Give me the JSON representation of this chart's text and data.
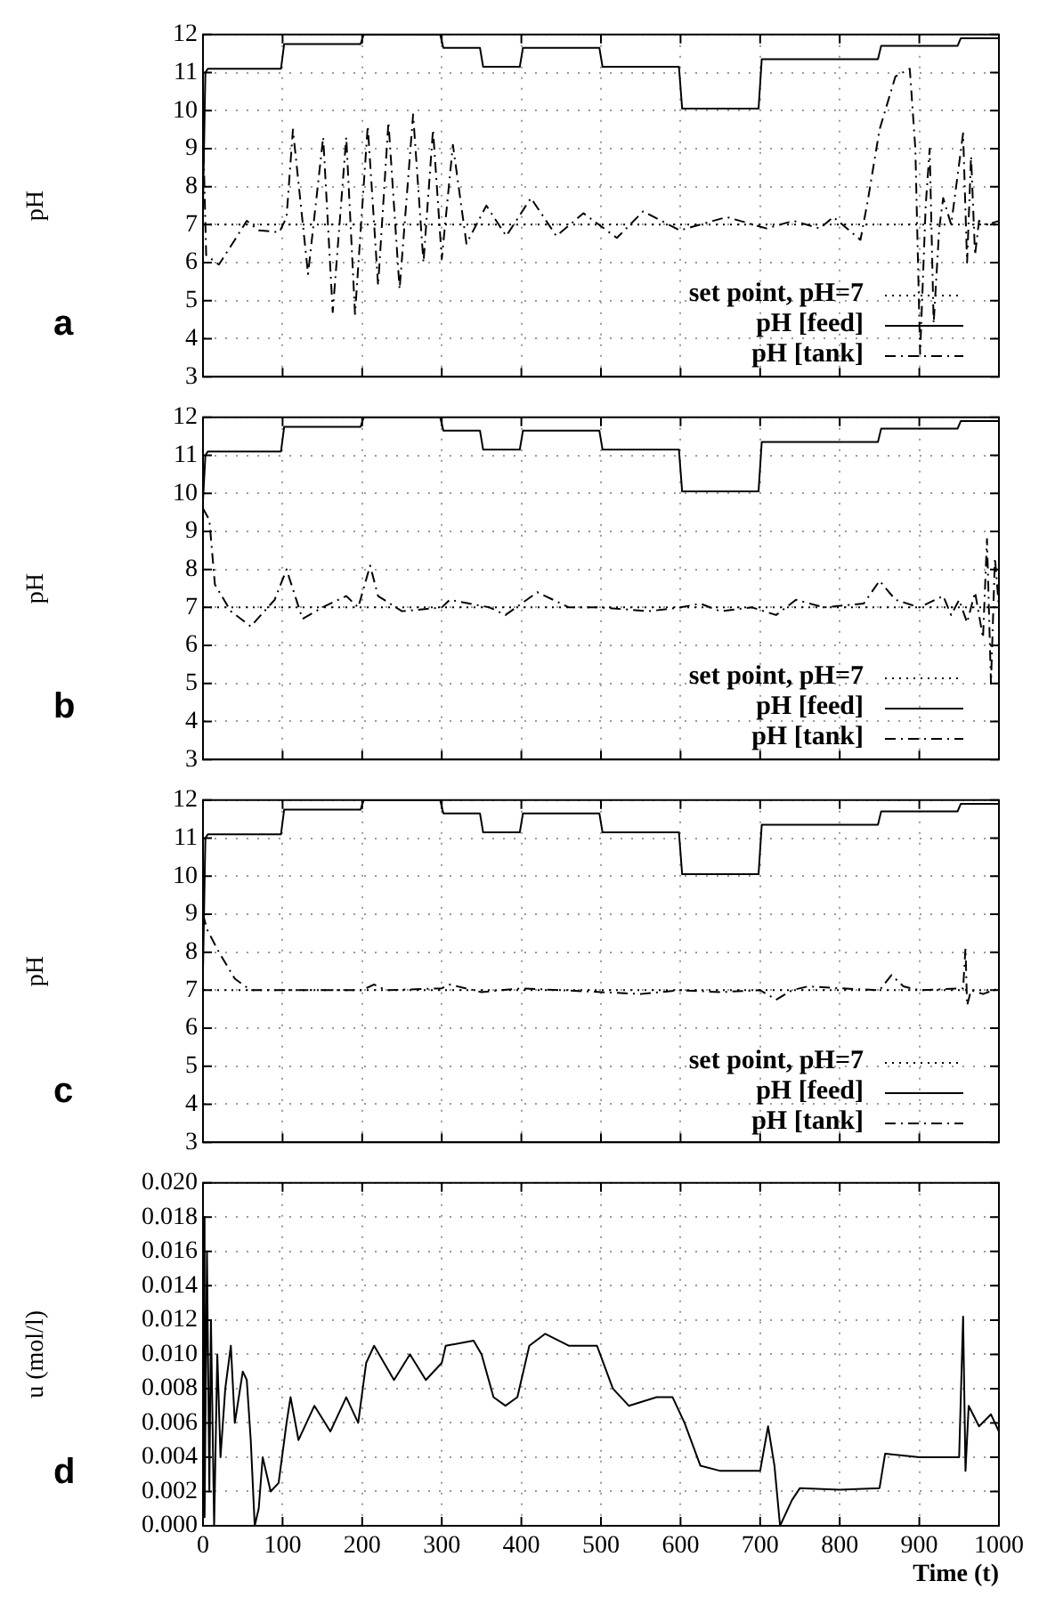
{
  "chart_data": [
    {
      "type": "line",
      "annotations": [
        "a"
      ],
      "ylabel": "pH",
      "xlim": [
        0,
        1000
      ],
      "xticks": [
        0,
        100,
        200,
        300,
        400,
        500,
        600,
        700,
        800,
        900,
        1000
      ],
      "ylim": [
        3,
        12
      ],
      "yticks": [
        3,
        4,
        5,
        6,
        7,
        8,
        9,
        10,
        11,
        12
      ],
      "tick_labels": "y",
      "grid": true,
      "legend": "bottom right",
      "marker": "none",
      "series": [
        {
          "name": "set point, pH=7",
          "color": "#000000",
          "line_style": "dotted",
          "x": [
            0,
            1000
          ],
          "values": [
            7,
            7
          ]
        },
        {
          "name": "pH [feed]",
          "color": "#000000",
          "line_style": "solid",
          "x": [
            0,
            3,
            6,
            98,
            102,
            198,
            202,
            298,
            302,
            348,
            352,
            398,
            402,
            498,
            502,
            598,
            602,
            698,
            702,
            848,
            852,
            948,
            952,
            1000
          ],
          "values": [
            7.5,
            11.0,
            11.1,
            11.1,
            11.75,
            11.75,
            12.0,
            12.0,
            11.65,
            11.65,
            11.15,
            11.15,
            11.65,
            11.65,
            11.15,
            11.15,
            10.05,
            10.05,
            11.35,
            11.35,
            11.7,
            11.7,
            11.9,
            11.9
          ]
        },
        {
          "name": "pH [tank]",
          "color": "#000000",
          "line_style": "dashed",
          "x": [
            0,
            4,
            20,
            40,
            55,
            70,
            96,
            105,
            113,
            132,
            151,
            163,
            180,
            191,
            207,
            220,
            233,
            247,
            264,
            277,
            289,
            300,
            314,
            331,
            356,
            381,
            412,
            444,
            478,
            520,
            553,
            599,
            658,
            708,
            742,
            775,
            792,
            826,
            835,
            850,
            870,
            888,
            895,
            901,
            908,
            913,
            918,
            925,
            930,
            940,
            955,
            960,
            965,
            970,
            975,
            985,
            1000
          ],
          "values": [
            9.5,
            6.2,
            5.95,
            6.6,
            7.1,
            6.85,
            6.8,
            7.2,
            9.5,
            5.7,
            9.3,
            4.7,
            9.3,
            4.65,
            9.6,
            5.4,
            9.7,
            5.3,
            9.9,
            6.0,
            9.5,
            6.1,
            9.1,
            6.5,
            7.5,
            6.7,
            7.7,
            6.7,
            7.3,
            6.65,
            7.35,
            6.85,
            7.2,
            6.9,
            7.1,
            6.9,
            7.2,
            6.6,
            7.6,
            9.5,
            10.9,
            11.1,
            9.0,
            3.6,
            7.5,
            9.0,
            4.4,
            6.9,
            7.7,
            7.0,
            9.4,
            6.0,
            8.8,
            6.2,
            7.1,
            7.0,
            7.1
          ]
        }
      ]
    },
    {
      "type": "line",
      "annotations": [
        "b"
      ],
      "ylabel": "pH",
      "xlim": [
        0,
        1000
      ],
      "xticks": [
        0,
        100,
        200,
        300,
        400,
        500,
        600,
        700,
        800,
        900,
        1000
      ],
      "ylim": [
        3,
        12
      ],
      "yticks": [
        3,
        4,
        5,
        6,
        7,
        8,
        9,
        10,
        11,
        12
      ],
      "tick_labels": "y",
      "grid": true,
      "legend": "bottom right",
      "marker": "none",
      "series": [
        {
          "name": "set point, pH=7",
          "color": "#000000",
          "line_style": "dotted",
          "x": [
            0,
            1000
          ],
          "values": [
            7,
            7
          ]
        },
        {
          "name": "pH [feed]",
          "color": "#000000",
          "line_style": "solid",
          "x": [
            0,
            3,
            6,
            98,
            102,
            198,
            202,
            298,
            302,
            348,
            352,
            398,
            402,
            498,
            502,
            598,
            602,
            698,
            702,
            848,
            852,
            948,
            952,
            1000
          ],
          "values": [
            9.8,
            11.0,
            11.1,
            11.1,
            11.75,
            11.75,
            12.0,
            12.0,
            11.65,
            11.65,
            11.15,
            11.15,
            11.65,
            11.65,
            11.15,
            11.15,
            10.05,
            10.05,
            11.35,
            11.35,
            11.7,
            11.7,
            11.9,
            11.9
          ]
        },
        {
          "name": "pH [tank]",
          "color": "#000000",
          "line_style": "dashed",
          "x": [
            0,
            8,
            15,
            35,
            60,
            90,
            105,
            125,
            150,
            180,
            195,
            210,
            220,
            250,
            300,
            310,
            360,
            380,
            420,
            460,
            500,
            560,
            600,
            625,
            650,
            690,
            720,
            745,
            780,
            830,
            850,
            870,
            900,
            930,
            940,
            950,
            960,
            970,
            980,
            985,
            990,
            995,
            1000
          ],
          "values": [
            9.6,
            9.3,
            7.6,
            6.9,
            6.5,
            7.2,
            8.0,
            6.7,
            7.0,
            7.3,
            7.0,
            8.1,
            7.3,
            6.9,
            7.0,
            7.2,
            7.0,
            6.8,
            7.4,
            7.0,
            7.0,
            6.9,
            7.0,
            7.1,
            6.9,
            7.0,
            6.8,
            7.2,
            7.0,
            7.1,
            7.7,
            7.2,
            7.0,
            7.3,
            6.8,
            7.2,
            6.6,
            7.4,
            6.2,
            8.8,
            5.0,
            8.3,
            7.0
          ]
        }
      ]
    },
    {
      "type": "line",
      "annotations": [
        "c"
      ],
      "ylabel": "pH",
      "xlim": [
        0,
        1000
      ],
      "xticks": [
        0,
        100,
        200,
        300,
        400,
        500,
        600,
        700,
        800,
        900,
        1000
      ],
      "ylim": [
        3,
        12
      ],
      "yticks": [
        3,
        4,
        5,
        6,
        7,
        8,
        9,
        10,
        11,
        12
      ],
      "tick_labels": "y",
      "grid": true,
      "legend": "bottom right",
      "marker": "none",
      "series": [
        {
          "name": "set point, pH=7",
          "color": "#000000",
          "line_style": "dotted",
          "x": [
            0,
            1000
          ],
          "values": [
            7,
            7
          ]
        },
        {
          "name": "pH [feed]",
          "color": "#000000",
          "line_style": "solid",
          "x": [
            0,
            3,
            6,
            98,
            102,
            198,
            202,
            298,
            302,
            348,
            352,
            398,
            402,
            498,
            502,
            598,
            602,
            698,
            702,
            848,
            852,
            948,
            952,
            1000
          ],
          "values": [
            7.5,
            11.0,
            11.1,
            11.1,
            11.75,
            11.75,
            12.0,
            12.0,
            11.65,
            11.65,
            11.15,
            11.15,
            11.65,
            11.65,
            11.15,
            11.15,
            10.05,
            10.05,
            11.35,
            11.35,
            11.7,
            11.7,
            11.9,
            11.9
          ]
        },
        {
          "name": "pH [tank]",
          "color": "#000000",
          "line_style": "dashed",
          "x": [
            0,
            5,
            20,
            40,
            60,
            200,
            215,
            230,
            300,
            310,
            350,
            400,
            450,
            500,
            550,
            600,
            650,
            700,
            720,
            740,
            760,
            800,
            850,
            865,
            880,
            900,
            955,
            958,
            960,
            965,
            980,
            1000
          ],
          "values": [
            9.0,
            8.6,
            8.0,
            7.3,
            7.0,
            7.0,
            7.15,
            7.0,
            7.05,
            7.15,
            6.95,
            7.05,
            7.0,
            6.95,
            6.9,
            7.0,
            6.95,
            7.0,
            6.75,
            7.0,
            7.1,
            7.05,
            7.0,
            7.4,
            7.1,
            7.0,
            7.05,
            8.1,
            6.6,
            7.0,
            6.9,
            7.05
          ]
        }
      ]
    },
    {
      "type": "line",
      "annotations": [
        "d"
      ],
      "ylabel": "u (mol/l)",
      "xlabel": "Time (t)",
      "xlim": [
        0,
        1000
      ],
      "xticks": [
        0,
        100,
        200,
        300,
        400,
        500,
        600,
        700,
        800,
        900,
        1000
      ],
      "ylim": [
        0,
        0.02
      ],
      "yticks": [
        {
          "value": 0,
          "label": "0.000"
        },
        {
          "value": 0.002,
          "label": "0.002"
        },
        {
          "value": 0.004,
          "label": "0.004"
        },
        {
          "value": 0.006,
          "label": "0.006"
        },
        {
          "value": 0.008,
          "label": "0.008"
        },
        {
          "value": 0.01,
          "label": "0.010"
        },
        {
          "value": 0.012,
          "label": "0.012"
        },
        {
          "value": 0.014,
          "label": "0.014"
        },
        {
          "value": 0.016,
          "label": "0.016"
        },
        {
          "value": 0.018,
          "label": "0.018"
        },
        {
          "value": 0.02,
          "label": "0.020"
        }
      ],
      "grid": true,
      "marker": "none",
      "series": [
        {
          "color": "#000000",
          "line_style": "solid",
          "x": [
            0,
            2,
            5,
            8,
            10,
            14,
            18,
            22,
            28,
            35,
            40,
            50,
            55,
            60,
            65,
            70,
            75,
            85,
            95,
            105,
            110,
            120,
            140,
            160,
            180,
            195,
            205,
            215,
            240,
            260,
            280,
            300,
            305,
            340,
            350,
            365,
            380,
            395,
            410,
            430,
            460,
            495,
            515,
            535,
            570,
            590,
            605,
            625,
            650,
            700,
            710,
            718,
            725,
            740,
            750,
            800,
            850,
            857,
            900,
            950,
            955,
            958,
            962,
            975,
            990,
            1000
          ],
          "values": [
            0.018,
            0.0005,
            0.016,
            0.002,
            0.012,
            0.0,
            0.01,
            0.004,
            0.008,
            0.0105,
            0.006,
            0.009,
            0.0085,
            0.005,
            0.0,
            0.001,
            0.004,
            0.002,
            0.0025,
            0.006,
            0.0075,
            0.005,
            0.007,
            0.0055,
            0.0075,
            0.006,
            0.0095,
            0.0105,
            0.0085,
            0.01,
            0.0085,
            0.0095,
            0.0105,
            0.0108,
            0.01,
            0.0075,
            0.007,
            0.0075,
            0.0105,
            0.0112,
            0.0105,
            0.0105,
            0.008,
            0.007,
            0.0075,
            0.0075,
            0.006,
            0.0035,
            0.0032,
            0.0032,
            0.0058,
            0.0035,
            0.0,
            0.0015,
            0.0022,
            0.0021,
            0.0022,
            0.0042,
            0.004,
            0.004,
            0.0122,
            0.0032,
            0.007,
            0.0058,
            0.0065,
            0.0055
          ]
        }
      ]
    }
  ]
}
